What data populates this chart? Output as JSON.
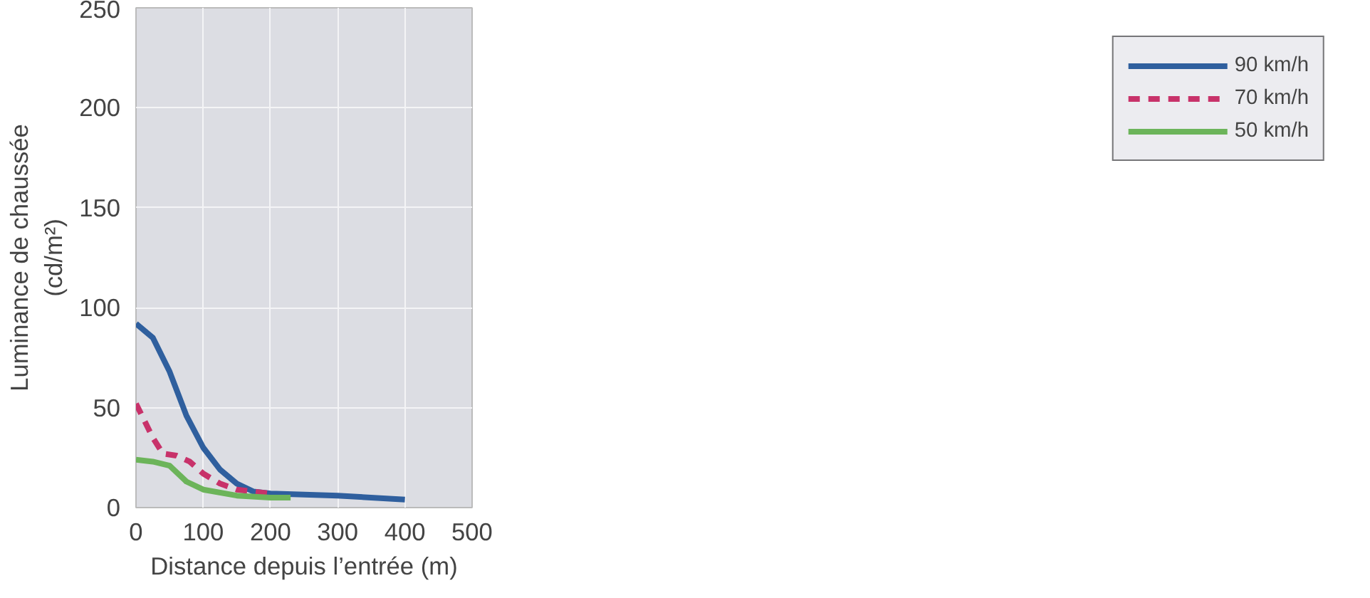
{
  "chart_data": {
    "type": "line",
    "xlabel": "Distance depuis l’entrée (m)",
    "ylabel": "Luminance de chaussée\n(cd/m²)",
    "xlim": [
      0,
      500
    ],
    "ylim": [
      0,
      250
    ],
    "xticks": [
      0,
      100,
      200,
      300,
      400,
      500
    ],
    "yticks": [
      0,
      50,
      100,
      150,
      200,
      250
    ],
    "grid": true,
    "legend": "right",
    "line_style": "solid",
    "series": [
      {
        "name": "90 km/h",
        "color": "#2f5f9e",
        "x": [
          0,
          25,
          50,
          75,
          100,
          125,
          150,
          175,
          200,
          300,
          400
        ],
        "values": [
          92,
          85,
          68,
          46,
          30,
          19,
          12,
          8,
          7,
          6,
          4
        ]
      },
      {
        "name": "70 km/h",
        "color": "#c8326a",
        "line_style": "dashed",
        "x": [
          0,
          25,
          40,
          60,
          80,
          100,
          125,
          150,
          175,
          200
        ],
        "values": [
          52,
          35,
          27,
          26,
          23,
          17,
          12,
          9,
          8,
          7
        ]
      },
      {
        "name": "50 km/h",
        "color": "#6cb45a",
        "x": [
          0,
          25,
          50,
          75,
          100,
          150,
          200,
          230
        ],
        "values": [
          24,
          23,
          21,
          13,
          9,
          6,
          5,
          5
        ]
      }
    ]
  }
}
